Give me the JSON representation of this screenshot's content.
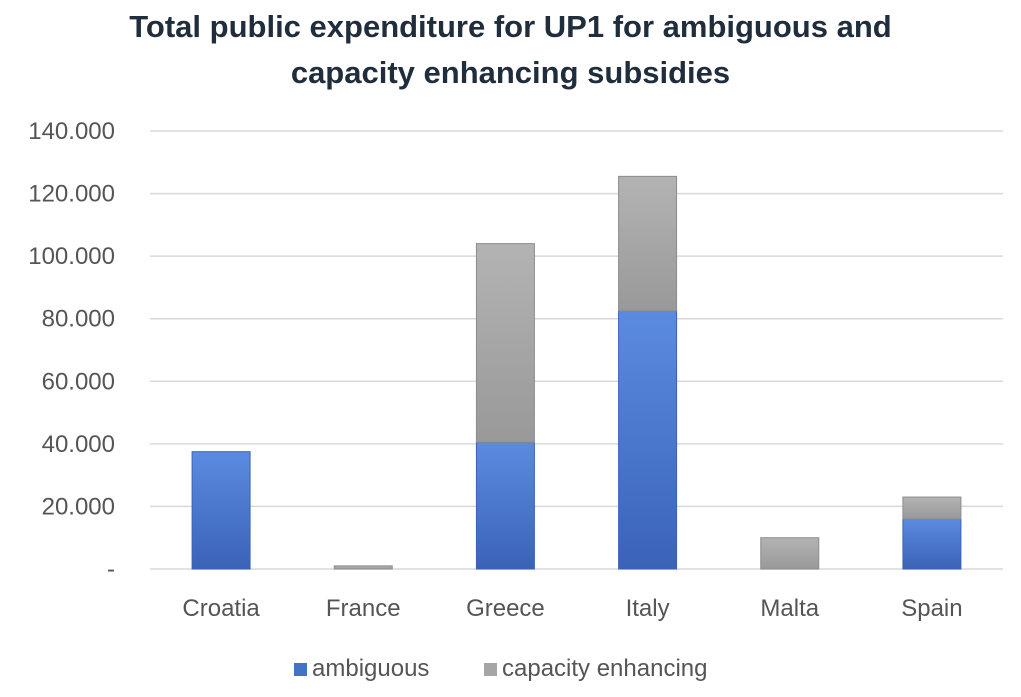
{
  "chart_data": {
    "type": "bar",
    "stacked": true,
    "title_line1": "Total public expenditure for UP1 for ambiguous and",
    "title_line2": "capacity enhancing subsidies",
    "xlabel": "",
    "ylabel": "",
    "ylim": [
      0,
      140000
    ],
    "yticks": [
      0,
      20000,
      40000,
      60000,
      80000,
      100000,
      120000,
      140000
    ],
    "ytick_labels": [
      "-",
      "20.000",
      "40.000",
      "60.000",
      "80.000",
      "100.000",
      "120.000",
      "140.000"
    ],
    "categories": [
      "Croatia",
      "France",
      "Greece",
      "Italy",
      "Malta",
      "Spain"
    ],
    "series": [
      {
        "name": "ambiguous",
        "color": "#4472c4",
        "values": [
          37500,
          0,
          40500,
          82500,
          0,
          16000
        ]
      },
      {
        "name": "capacity enhancing",
        "color": "#a5a5a5",
        "values": [
          0,
          1000,
          63500,
          43000,
          10000,
          7000
        ]
      }
    ],
    "grid": true,
    "legend_position": "bottom"
  }
}
